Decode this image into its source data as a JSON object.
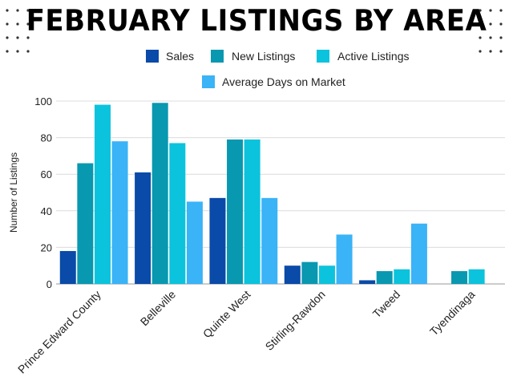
{
  "chart_data": {
    "type": "bar",
    "title": "FEBRUARY LISTINGS BY AREA",
    "ylabel": "Number of Listings",
    "xlabel": "",
    "ylim": [
      0,
      100
    ],
    "yticks": [
      0,
      20,
      40,
      60,
      80,
      100
    ],
    "grid": true,
    "legend_position": "top",
    "categories": [
      "Prince Edward County",
      "Belleville",
      "Quinte West",
      "Stirling-Rawdon",
      "Tweed",
      "Tyendinaga"
    ],
    "series": [
      {
        "name": "Sales",
        "color": "#0a4aa8",
        "values": [
          18,
          61,
          47,
          10,
          2,
          0
        ]
      },
      {
        "name": "New Listings",
        "color": "#0898b0",
        "values": [
          66,
          99,
          79,
          12,
          7,
          7
        ]
      },
      {
        "name": "Active Listings",
        "color": "#0bc3dc",
        "values": [
          98,
          77,
          79,
          10,
          8,
          8
        ]
      },
      {
        "name": "Average Days on Market",
        "color": "#3ab3f7",
        "values": [
          78,
          45,
          47,
          27,
          33,
          null
        ]
      }
    ]
  }
}
